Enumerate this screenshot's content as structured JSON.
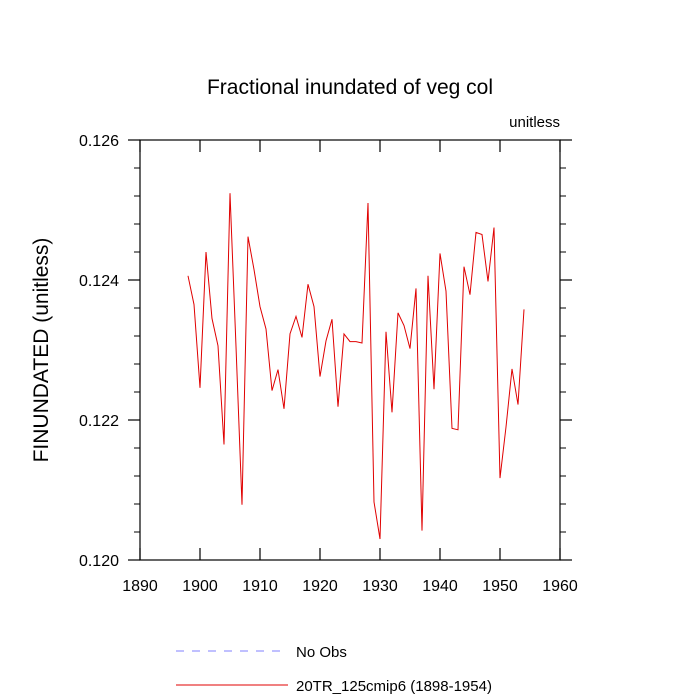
{
  "chart_data": {
    "type": "line",
    "title": "Fractional inundated of veg col",
    "units_label": "unitless",
    "xlabel": "",
    "ylabel": "FINUNDATED  (unitless)",
    "xlim": [
      1890,
      1960
    ],
    "ylim": [
      0.12,
      0.126
    ],
    "x_ticks": [
      1890,
      1900,
      1910,
      1920,
      1930,
      1940,
      1950,
      1960
    ],
    "x_tick_labels": [
      "1890",
      "1900",
      "1910",
      "1920",
      "1930",
      "1940",
      "1950",
      "1960"
    ],
    "y_ticks": [
      0.12,
      0.122,
      0.124,
      0.126
    ],
    "y_tick_labels": [
      "0.120",
      "0.122",
      "0.124",
      "0.126"
    ],
    "legend": [
      {
        "name": "No Obs",
        "color": "#8080ff",
        "style": "dashed"
      },
      {
        "name": "20TR_125cmip6 (1898-1954)",
        "color": "#e00000",
        "style": "solid"
      }
    ],
    "series": [
      {
        "name": "20TR_125cmip6 (1898-1954)",
        "color": "#e00000",
        "x": [
          1898,
          1899,
          1900,
          1901,
          1902,
          1903,
          1904,
          1905,
          1906,
          1907,
          1908,
          1909,
          1910,
          1911,
          1912,
          1913,
          1914,
          1915,
          1916,
          1917,
          1918,
          1919,
          1920,
          1921,
          1922,
          1923,
          1924,
          1925,
          1926,
          1927,
          1928,
          1929,
          1930,
          1931,
          1932,
          1933,
          1934,
          1935,
          1936,
          1937,
          1938,
          1939,
          1940,
          1941,
          1942,
          1943,
          1944,
          1945,
          1946,
          1947,
          1948,
          1949,
          1950,
          1951,
          1952,
          1953,
          1954
        ],
        "values": [
          0.12406,
          0.12365,
          0.12246,
          0.1244,
          0.12345,
          0.12306,
          0.12165,
          0.12524,
          0.12305,
          0.12079,
          0.12462,
          0.12415,
          0.12362,
          0.1233,
          0.12242,
          0.12272,
          0.12216,
          0.12323,
          0.12348,
          0.12318,
          0.12394,
          0.12362,
          0.12262,
          0.12313,
          0.12344,
          0.12219,
          0.12323,
          0.12312,
          0.12312,
          0.1231,
          0.1251,
          0.12083,
          0.1203,
          0.12326,
          0.12211,
          0.12353,
          0.12335,
          0.12302,
          0.12388,
          0.12042,
          0.12406,
          0.12244,
          0.12438,
          0.12384,
          0.12188,
          0.12186,
          0.12419,
          0.12379,
          0.12468,
          0.12465,
          0.12398,
          0.12475,
          0.12117,
          0.1219,
          0.12273,
          0.12222,
          0.12358
        ]
      }
    ]
  }
}
